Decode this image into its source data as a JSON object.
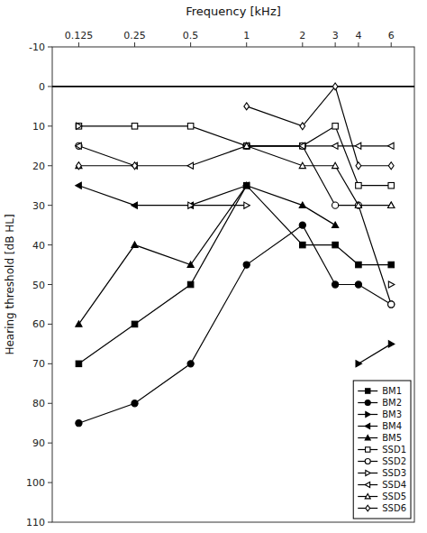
{
  "chart_data": {
    "type": "line",
    "xlabel": "Frequency [kHz]",
    "ylabel": "Hearing threshold [dB HL]",
    "x": [
      0.125,
      0.25,
      0.5,
      1,
      2,
      3,
      4,
      6
    ],
    "xlim": [
      0.09,
      8
    ],
    "xticks": [
      0.125,
      0.25,
      0.5,
      1,
      2,
      3,
      4,
      6
    ],
    "ylim": [
      110,
      -10
    ],
    "yticks": [
      -10,
      0,
      10,
      20,
      30,
      40,
      50,
      60,
      70,
      80,
      90,
      100,
      110
    ],
    "log": "x",
    "grid": false,
    "legend": "lower right",
    "color": "black",
    "hline": 0,
    "series": [
      {
        "name": "BM1",
        "marker": "square",
        "values": [
          70,
          60,
          50,
          25,
          40,
          40,
          45,
          45
        ]
      },
      {
        "name": "BM2",
        "marker": "circle",
        "values": [
          85,
          80,
          70,
          45,
          35,
          50,
          50,
          55
        ]
      },
      {
        "name": "BM3",
        "marker": "triangle-right",
        "values": [
          null,
          null,
          null,
          null,
          null,
          null,
          70,
          65
        ]
      },
      {
        "name": "BM4",
        "marker": "triangle-left",
        "values": [
          25,
          30,
          30,
          25,
          null,
          null,
          null,
          null
        ]
      },
      {
        "name": "BM5",
        "marker": "triangle-up",
        "values": [
          60,
          40,
          45,
          25,
          30,
          35,
          null,
          30
        ]
      },
      {
        "name": "SSD1",
        "marker": "open-square",
        "values": [
          10,
          10,
          10,
          15,
          15,
          10,
          25,
          25
        ]
      },
      {
        "name": "SSD2",
        "marker": "open-circle",
        "values": [
          15,
          null,
          null,
          15,
          15,
          30,
          30,
          55
        ]
      },
      {
        "name": "SSD3",
        "marker": "open-triangle-right",
        "values": [
          10,
          null,
          30,
          30,
          null,
          null,
          null,
          50
        ]
      },
      {
        "name": "SSD4",
        "marker": "open-triangle-left",
        "values": [
          15,
          20,
          20,
          15,
          15,
          15,
          15,
          15
        ]
      },
      {
        "name": "SSD5",
        "marker": "open-triangle-up",
        "values": [
          20,
          null,
          null,
          15,
          20,
          20,
          30,
          30
        ]
      },
      {
        "name": "SSD6",
        "marker": "open-diamond",
        "values": [
          20,
          20,
          null,
          5,
          10,
          0,
          20,
          20
        ]
      }
    ]
  }
}
